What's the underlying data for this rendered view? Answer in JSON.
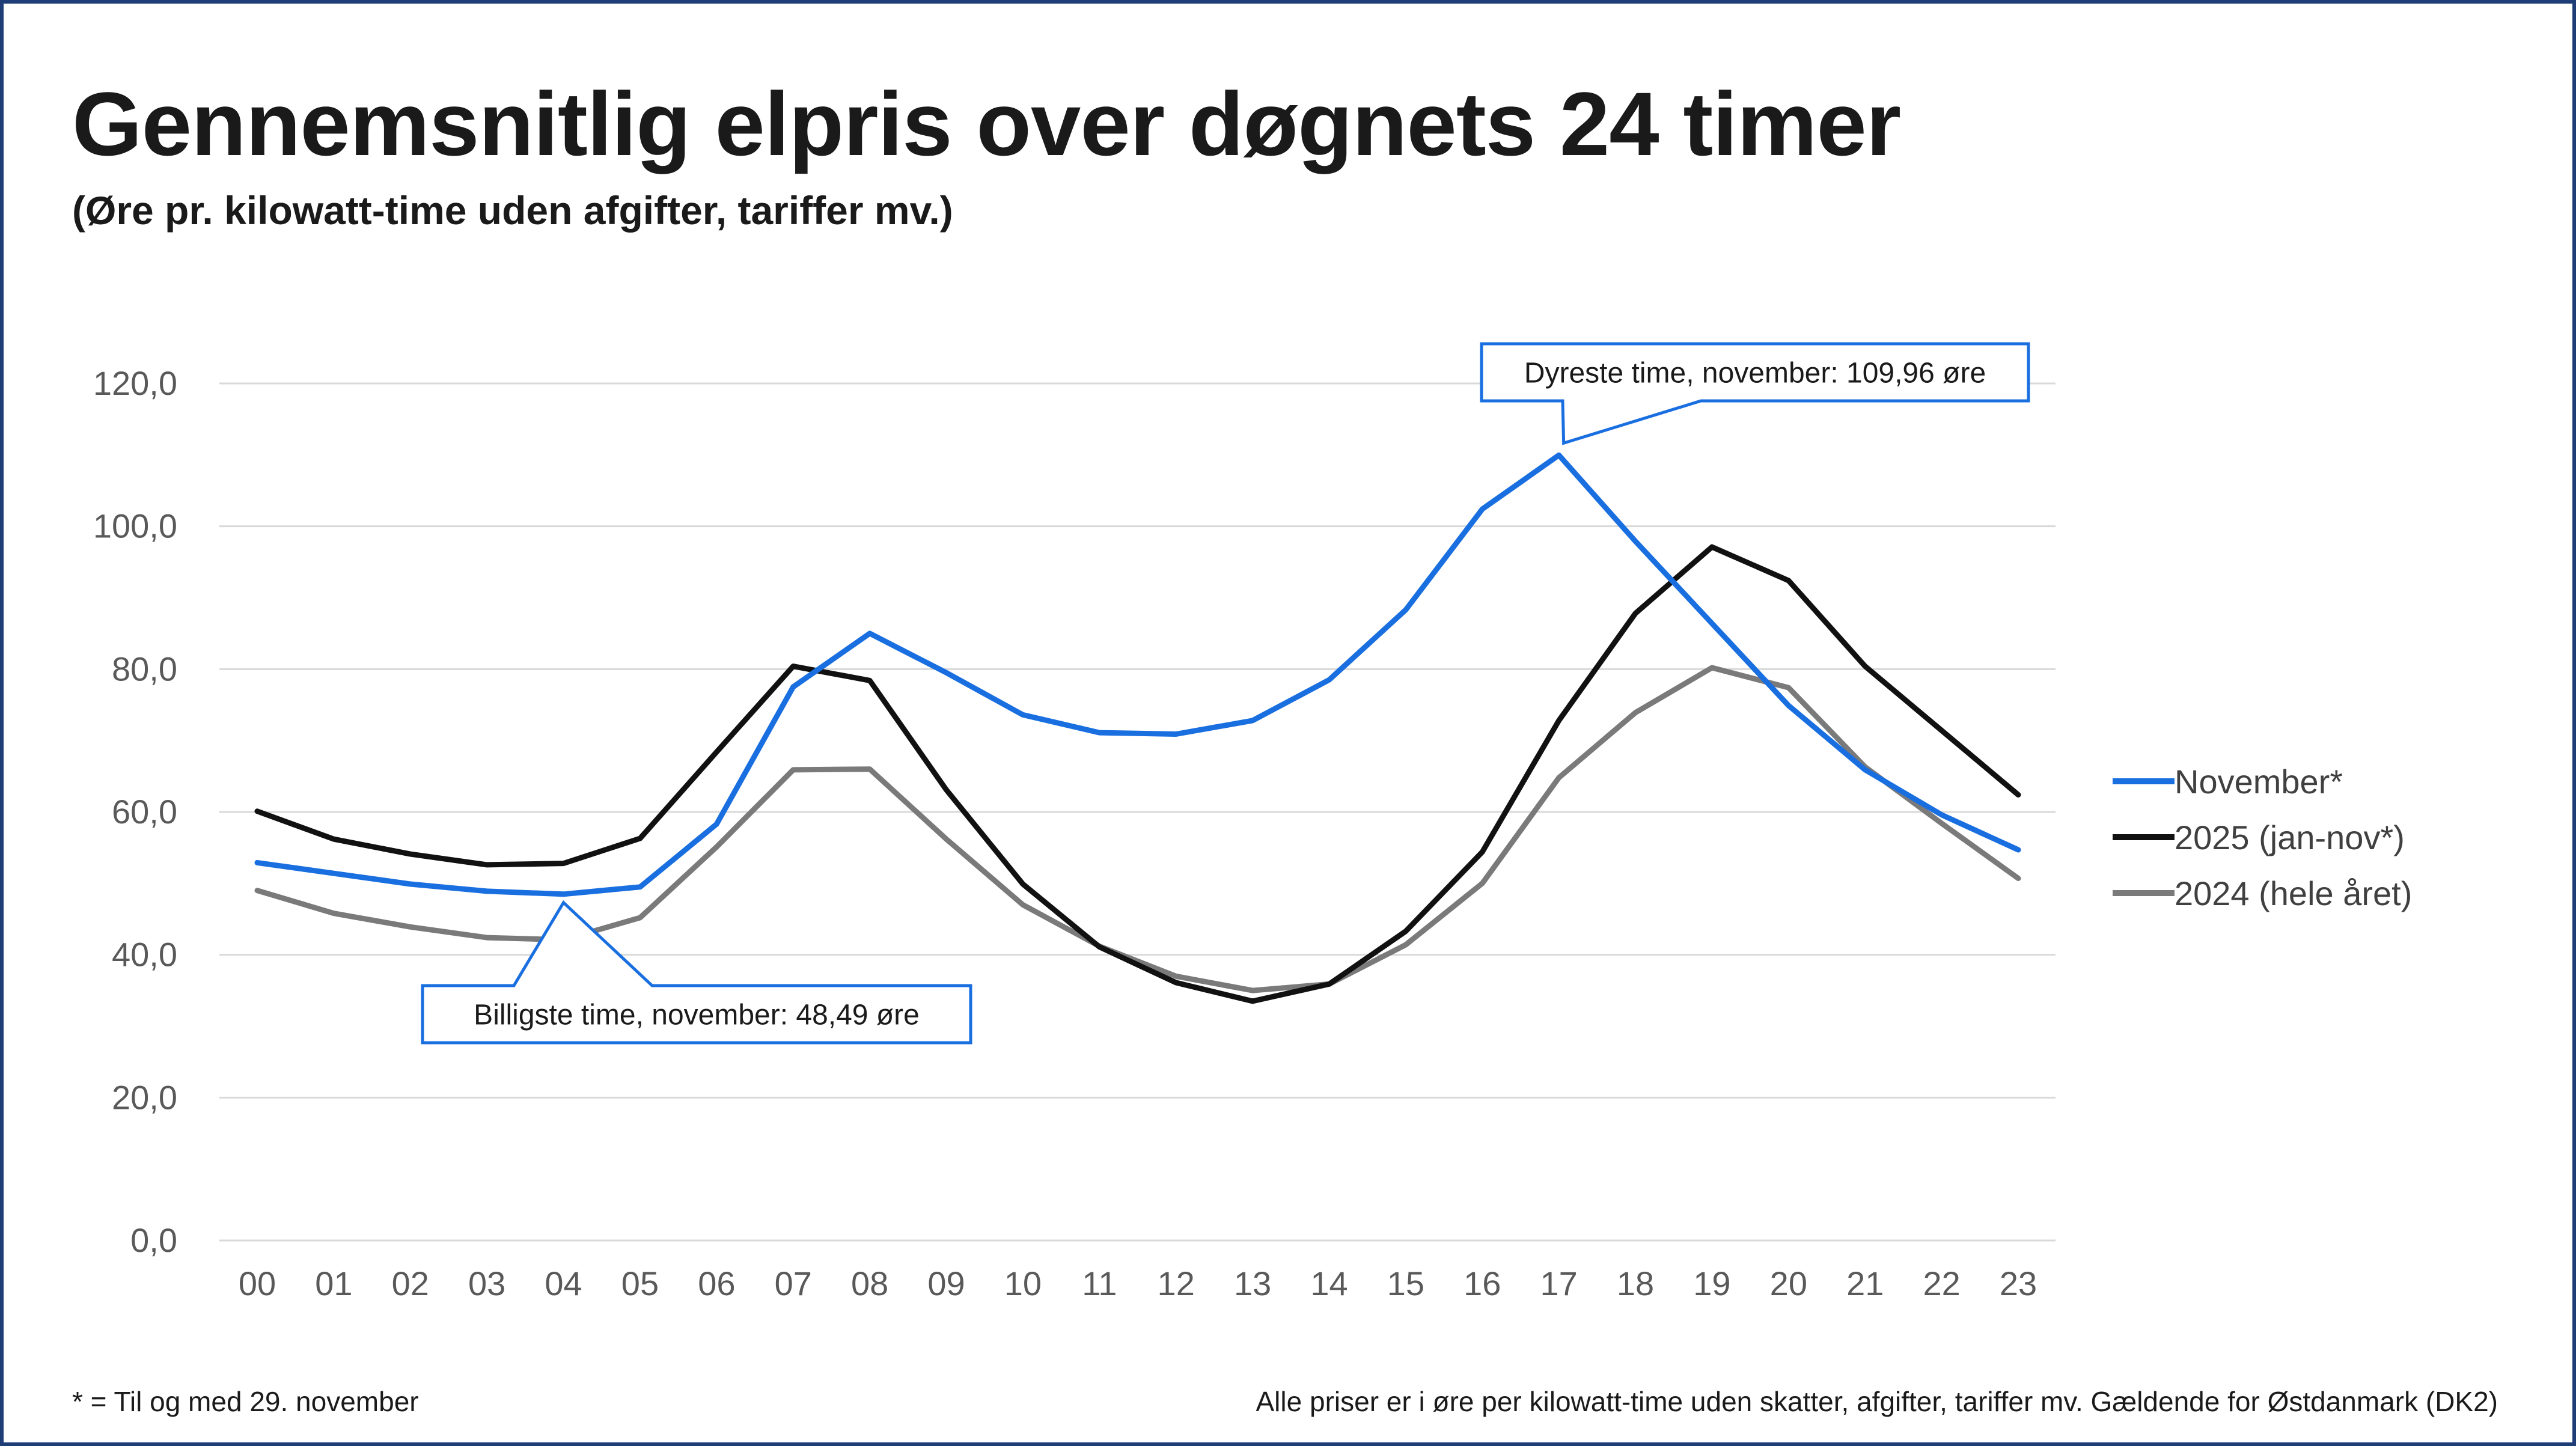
{
  "title": "Gennemsnitlig elpris over døgnets 24 timer",
  "subtitle": "(Øre pr. kilowatt-time uden afgifter, tariffer mv.)",
  "footnote": "* = Til og med 29. november",
  "source_note": "Alle priser er i øre per kilowatt-time uden skatter, afgifter, tariffer mv. Gældende for Østdanmark (DK2)",
  "colors": {
    "november": "#1a6fe0",
    "y2025": "#111111",
    "y2024": "#7a7a7a",
    "grid": "#d9d9d9",
    "tick_text": "#595959",
    "frame": "#1f3e78",
    "annotation_border": "#1a6fe0"
  },
  "annotations": {
    "max": {
      "text": "Dyreste time, november: 109,96 øre",
      "x": "17",
      "y": 109.96
    },
    "min": {
      "text": "Billigste time, november: 48,49 øre",
      "x": "04",
      "y": 48.49
    }
  },
  "chart_data": {
    "type": "line",
    "title": "Gennemsnitlig elpris over døgnets 24 timer",
    "subtitle": "(Øre pr. kilowatt-time uden afgifter, tariffer mv.)",
    "xlabel": "",
    "ylabel": "",
    "categories": [
      "00",
      "01",
      "02",
      "03",
      "04",
      "05",
      "06",
      "07",
      "08",
      "09",
      "10",
      "11",
      "12",
      "13",
      "14",
      "15",
      "16",
      "17",
      "18",
      "19",
      "20",
      "21",
      "22",
      "23"
    ],
    "yticks": [
      "0,0",
      "20,0",
      "40,0",
      "60,0",
      "80,0",
      "100,0",
      "120,0"
    ],
    "ylim": [
      0,
      120
    ],
    "grid": true,
    "legend": "right",
    "series": [
      {
        "name": "November*",
        "values": [
          52.9,
          51.4,
          49.9,
          48.9,
          48.49,
          49.5,
          58.3,
          77.5,
          85.0,
          79.5,
          73.6,
          71.1,
          70.9,
          72.8,
          78.5,
          88.3,
          102.4,
          109.96,
          97.9,
          86.4,
          74.9,
          65.9,
          59.6,
          54.7
        ]
      },
      {
        "name": "2025 (jan-nov*)",
        "values": [
          60.1,
          56.2,
          54.1,
          52.6,
          52.8,
          56.3,
          68.4,
          80.4,
          78.4,
          63.1,
          49.9,
          41.1,
          36.1,
          33.5,
          35.9,
          43.3,
          54.4,
          72.8,
          87.8,
          97.1,
          92.4,
          80.4,
          71.4,
          62.4
        ]
      },
      {
        "name": "2024 (hele året)",
        "values": [
          49.0,
          45.8,
          43.9,
          42.4,
          42.1,
          45.2,
          55.1,
          65.9,
          66.0,
          56.2,
          47.0,
          41.2,
          37.0,
          35.0,
          35.9,
          41.4,
          50.0,
          64.8,
          73.9,
          80.2,
          77.4,
          66.3,
          58.4,
          50.7
        ]
      }
    ]
  }
}
